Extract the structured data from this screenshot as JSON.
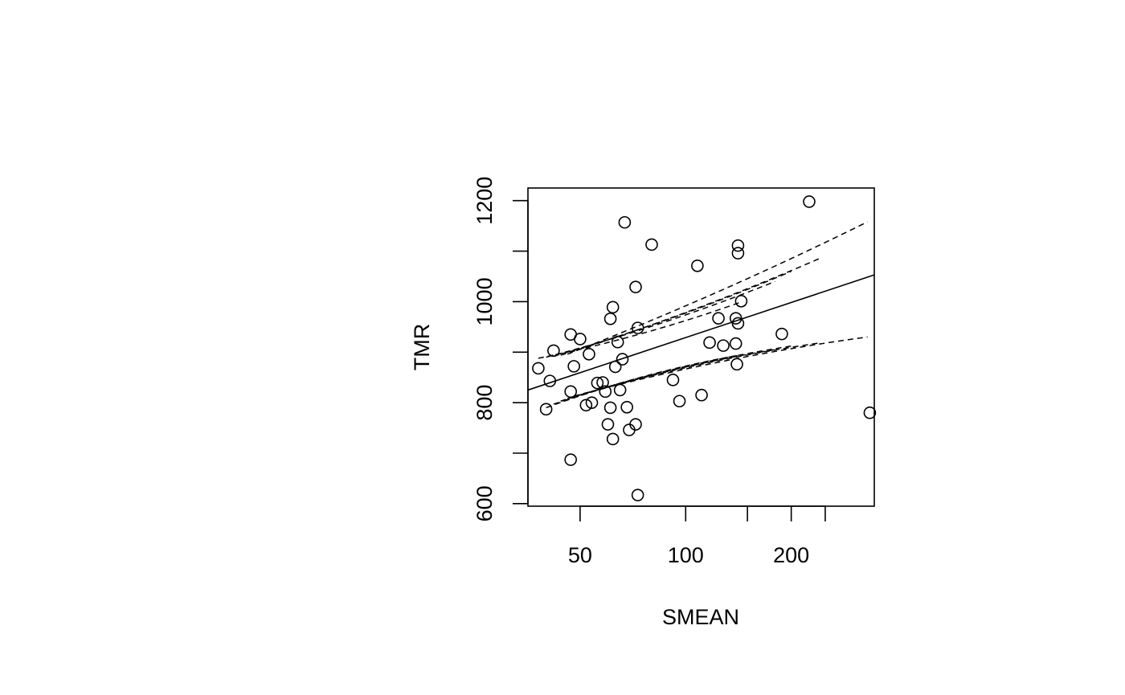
{
  "chart_data": {
    "type": "scatter",
    "xlabel": "SMEAN",
    "ylabel": "TMR",
    "x_scale": "log",
    "xlim": [
      35.5,
      345
    ],
    "ylim": [
      595,
      1225
    ],
    "x_ticks": [
      50,
      100,
      150,
      200,
      250
    ],
    "x_tick_labels": [
      "50",
      "100",
      "",
      "200",
      ""
    ],
    "y_ticks": [
      600,
      800,
      1000,
      1200
    ],
    "y_ticks_unlabeled": [
      700,
      900,
      1100
    ],
    "grid": false,
    "points": [
      {
        "x": 38,
        "y": 868
      },
      {
        "x": 40,
        "y": 787
      },
      {
        "x": 41,
        "y": 843
      },
      {
        "x": 42,
        "y": 903
      },
      {
        "x": 47,
        "y": 935
      },
      {
        "x": 47,
        "y": 822
      },
      {
        "x": 47,
        "y": 687
      },
      {
        "x": 48,
        "y": 872
      },
      {
        "x": 50,
        "y": 926
      },
      {
        "x": 52,
        "y": 795
      },
      {
        "x": 53,
        "y": 896
      },
      {
        "x": 54,
        "y": 800
      },
      {
        "x": 56,
        "y": 839
      },
      {
        "x": 58,
        "y": 840
      },
      {
        "x": 59,
        "y": 822
      },
      {
        "x": 60,
        "y": 757
      },
      {
        "x": 61,
        "y": 790
      },
      {
        "x": 61,
        "y": 966
      },
      {
        "x": 62,
        "y": 989
      },
      {
        "x": 62,
        "y": 728
      },
      {
        "x": 63,
        "y": 871
      },
      {
        "x": 64,
        "y": 920
      },
      {
        "x": 65,
        "y": 825
      },
      {
        "x": 66,
        "y": 886
      },
      {
        "x": 67,
        "y": 1157
      },
      {
        "x": 68,
        "y": 791
      },
      {
        "x": 69,
        "y": 746
      },
      {
        "x": 72,
        "y": 1029
      },
      {
        "x": 72,
        "y": 757
      },
      {
        "x": 73,
        "y": 948
      },
      {
        "x": 73,
        "y": 617
      },
      {
        "x": 80,
        "y": 1113
      },
      {
        "x": 92,
        "y": 845
      },
      {
        "x": 96,
        "y": 803
      },
      {
        "x": 108,
        "y": 1071
      },
      {
        "x": 111,
        "y": 815
      },
      {
        "x": 117,
        "y": 919
      },
      {
        "x": 124,
        "y": 967
      },
      {
        "x": 128,
        "y": 913
      },
      {
        "x": 139,
        "y": 967
      },
      {
        "x": 139,
        "y": 917
      },
      {
        "x": 140,
        "y": 876
      },
      {
        "x": 141,
        "y": 957
      },
      {
        "x": 141,
        "y": 1111
      },
      {
        "x": 141,
        "y": 1096
      },
      {
        "x": 144,
        "y": 1001
      },
      {
        "x": 188,
        "y": 936
      },
      {
        "x": 225,
        "y": 1198
      },
      {
        "x": 335,
        "y": 780
      }
    ],
    "fit_line": {
      "x": [
        35.5,
        345
      ],
      "y": [
        825,
        1053
      ]
    },
    "band_upper": [
      {
        "x": [
          38,
          145
        ],
        "y": [
          888,
          1000
        ]
      },
      {
        "x": [
          40,
          180
        ],
        "y": [
          890,
          1040
        ]
      },
      {
        "x": [
          42,
          200
        ],
        "y": [
          892,
          1060
        ]
      },
      {
        "x": [
          44,
          240
        ],
        "y": [
          894,
          1085
        ]
      },
      {
        "x": [
          46,
          330
        ],
        "y": [
          896,
          1158
        ]
      }
    ],
    "band_lower": [
      {
        "x": [
          40,
          145
        ],
        "y": [
          790,
          895
        ]
      },
      {
        "x": [
          42,
          180
        ],
        "y": [
          797,
          905
        ]
      },
      {
        "x": [
          44,
          200
        ],
        "y": [
          803,
          912
        ]
      },
      {
        "x": [
          46,
          240
        ],
        "y": [
          808,
          918
        ]
      },
      {
        "x": [
          48,
          330
        ],
        "y": [
          813,
          930
        ]
      }
    ]
  }
}
